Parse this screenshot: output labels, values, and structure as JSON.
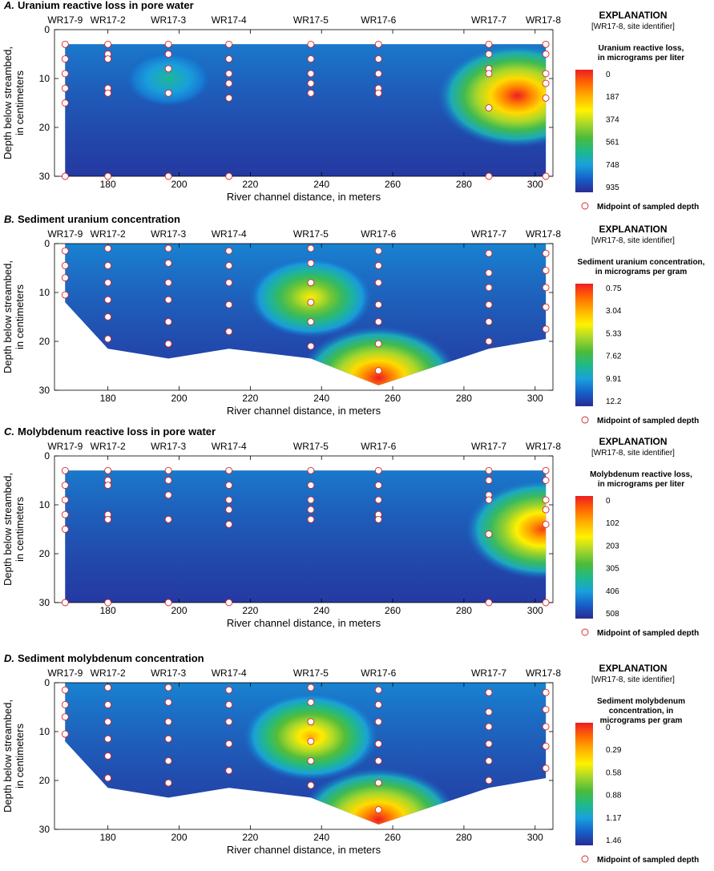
{
  "figure": {
    "panels": [
      {
        "id": "A",
        "title_letter": "A.",
        "title_text": "Uranium reactive loss in pore water",
        "xlabel": "River channel distance, in meters",
        "ylabel_line1": "Depth below streambed,",
        "ylabel_line2": "in centimeters",
        "explanation_title": "EXPLANATION",
        "explanation_subtitle": "[WR17-8, site identifier]",
        "scale_title_lines": [
          "Uranium reactive loss,",
          "in micrograms per liter"
        ],
        "colorbar_labels": [
          "0",
          "187",
          "374",
          "561",
          "748",
          "935"
        ],
        "midpoint_label": "Midpoint of sampled depth"
      },
      {
        "id": "B",
        "title_letter": "B.",
        "title_text": "Sediment uranium concentration",
        "xlabel": "River channel distance, in meters",
        "ylabel_line1": "Depth below streambed,",
        "ylabel_line2": "in centimeters",
        "explanation_title": "EXPLANATION",
        "explanation_subtitle": "[WR17-8, site identifier]",
        "scale_title_lines": [
          "Sediment uranium concentration,",
          "in micrograms per gram"
        ],
        "colorbar_labels": [
          "0.75",
          "3.04",
          "5.33",
          "7.62",
          "9.91",
          "12.2"
        ],
        "midpoint_label": "Midpoint of sampled depth"
      },
      {
        "id": "C",
        "title_letter": "C.",
        "title_text": "Molybdenum reactive loss in pore water",
        "xlabel": "River channel distance, in meters",
        "ylabel_line1": "Depth below streambed,",
        "ylabel_line2": "in centimeters",
        "explanation_title": "EXPLANATION",
        "explanation_subtitle": "[WR17-8, site identifier]",
        "scale_title_lines": [
          "Molybdenum reactive loss,",
          "in micrograms per liter"
        ],
        "colorbar_labels": [
          "0",
          "102",
          "203",
          "305",
          "406",
          "508"
        ],
        "midpoint_label": "Midpoint of sampled depth"
      },
      {
        "id": "D",
        "title_letter": "D.",
        "title_text": "Sediment molybdenum concentration",
        "xlabel": "River channel distance, in meters",
        "ylabel_line1": "Depth below streambed,",
        "ylabel_line2": "in centimeters",
        "explanation_title": "EXPLANATION",
        "explanation_subtitle": "[WR17-8, site identifier]",
        "scale_title_lines": [
          "Sediment molybdenum",
          "concentration, in",
          "micrograms per gram"
        ],
        "colorbar_labels": [
          "0",
          "0.29",
          "0.58",
          "0.88",
          "1.17",
          "1.46"
        ],
        "midpoint_label": "Midpoint of sampled depth"
      }
    ],
    "colors": {
      "scale": [
        "#2a2a94",
        "#1560c8",
        "#1aa0dc",
        "#1fb98a",
        "#4cbb3a",
        "#a6d62d",
        "#fff200",
        "#ffb300",
        "#ff6a00",
        "#ee1c24"
      ],
      "marker_stroke": "#d7262b",
      "marker_fill": "#ffffff"
    }
  },
  "chart_data": [
    {
      "type": "heatmap",
      "title": "A. Uranium reactive loss in pore water",
      "xlabel": "River channel distance, in meters",
      "ylabel": "Depth below streambed, in centimeters",
      "xlim": [
        165,
        305
      ],
      "ylim": [
        30,
        0
      ],
      "x_ticks": [
        180,
        200,
        220,
        240,
        260,
        280,
        300
      ],
      "y_ticks": [
        0,
        10,
        20,
        30
      ],
      "sites": [
        {
          "name": "WR17-9",
          "x": 168
        },
        {
          "name": "WR17-2",
          "x": 180
        },
        {
          "name": "WR17-3",
          "x": 197
        },
        {
          "name": "WR17-4",
          "x": 214
        },
        {
          "name": "WR17-5",
          "x": 237
        },
        {
          "name": "WR17-6",
          "x": 256
        },
        {
          "name": "WR17-7",
          "x": 287
        },
        {
          "name": "WR17-8",
          "x": 303
        }
      ],
      "domain_depth_top": [
        [
          168,
          3
        ],
        [
          303,
          3
        ]
      ],
      "domain_depth_bottom": [
        [
          168,
          30
        ],
        [
          303,
          30
        ]
      ],
      "samples": [
        [
          168,
          [
            3,
            6,
            9,
            12,
            15,
            30
          ]
        ],
        [
          180,
          [
            3,
            5,
            6,
            12,
            13,
            30
          ]
        ],
        [
          197,
          [
            3,
            5,
            8,
            13,
            30
          ]
        ],
        [
          214,
          [
            3,
            6,
            9,
            11,
            14,
            30
          ]
        ],
        [
          237,
          [
            3,
            6,
            9,
            11,
            13
          ]
        ],
        [
          256,
          [
            3,
            6,
            9,
            12,
            13
          ]
        ],
        [
          287,
          [
            3,
            5,
            8,
            9,
            16,
            30
          ]
        ],
        [
          303,
          [
            3,
            5,
            9,
            11,
            14,
            30
          ]
        ]
      ],
      "color_scale_label": "Uranium reactive loss, in micrograms per liter",
      "color_scale": [
        0,
        187,
        374,
        561,
        748,
        935
      ],
      "hotspots": [
        {
          "x": 295,
          "depth": 13.5,
          "value": 935
        },
        {
          "x": 197,
          "depth": 10,
          "value": 300
        }
      ]
    },
    {
      "type": "heatmap",
      "title": "B. Sediment uranium concentration",
      "xlabel": "River channel distance, in meters",
      "ylabel": "Depth below streambed, in centimeters",
      "xlim": [
        165,
        305
      ],
      "ylim": [
        30,
        0
      ],
      "x_ticks": [
        180,
        200,
        220,
        240,
        260,
        280,
        300
      ],
      "y_ticks": [
        0,
        10,
        20,
        30
      ],
      "sites": [
        {
          "name": "WR17-9",
          "x": 168
        },
        {
          "name": "WR17-2",
          "x": 180
        },
        {
          "name": "WR17-3",
          "x": 197
        },
        {
          "name": "WR17-4",
          "x": 214
        },
        {
          "name": "WR17-5",
          "x": 237
        },
        {
          "name": "WR17-6",
          "x": 256
        },
        {
          "name": "WR17-7",
          "x": 287
        },
        {
          "name": "WR17-8",
          "x": 303
        }
      ],
      "domain_depth_top": [
        [
          168,
          0
        ],
        [
          303,
          0
        ]
      ],
      "domain_depth_bottom": [
        [
          168,
          12
        ],
        [
          180,
          21.5
        ],
        [
          197,
          23.5
        ],
        [
          214,
          21.5
        ],
        [
          237,
          23.5
        ],
        [
          256,
          29
        ],
        [
          287,
          21.5
        ],
        [
          303,
          19.5
        ]
      ],
      "samples": [
        [
          168,
          [
            1.5,
            4.5,
            7,
            10.5
          ]
        ],
        [
          180,
          [
            1,
            4.5,
            8,
            11.5,
            15,
            19.5
          ]
        ],
        [
          197,
          [
            1,
            4,
            8,
            11.5,
            16,
            20.5
          ]
        ],
        [
          214,
          [
            1.5,
            4.5,
            8,
            12.5,
            18
          ]
        ],
        [
          237,
          [
            1,
            4,
            8,
            12,
            16,
            21
          ]
        ],
        [
          256,
          [
            1.5,
            4.5,
            8,
            12.5,
            16,
            20.5,
            26
          ]
        ],
        [
          287,
          [
            2,
            6,
            9,
            12.5,
            16,
            20
          ]
        ],
        [
          303,
          [
            2,
            5.5,
            9,
            13,
            17.5
          ]
        ]
      ],
      "color_scale_label": "Sediment uranium concentration, in micrograms per gram",
      "color_scale": [
        0.75,
        3.04,
        5.33,
        7.62,
        9.91,
        12.2
      ],
      "hotspots": [
        {
          "x": 256,
          "depth": 27.5,
          "value": 12.2
        },
        {
          "x": 237,
          "depth": 11,
          "value": 8.5
        }
      ]
    },
    {
      "type": "heatmap",
      "title": "C. Molybdenum reactive loss in pore water",
      "xlabel": "River channel distance, in meters",
      "ylabel": "Depth below streambed, in centimeters",
      "xlim": [
        165,
        305
      ],
      "ylim": [
        30,
        0
      ],
      "x_ticks": [
        180,
        200,
        220,
        240,
        260,
        280,
        300
      ],
      "y_ticks": [
        0,
        10,
        20,
        30
      ],
      "sites": [
        {
          "name": "WR17-9",
          "x": 168
        },
        {
          "name": "WR17-2",
          "x": 180
        },
        {
          "name": "WR17-3",
          "x": 197
        },
        {
          "name": "WR17-4",
          "x": 214
        },
        {
          "name": "WR17-5",
          "x": 237
        },
        {
          "name": "WR17-6",
          "x": 256
        },
        {
          "name": "WR17-7",
          "x": 287
        },
        {
          "name": "WR17-8",
          "x": 303
        }
      ],
      "domain_depth_top": [
        [
          168,
          3
        ],
        [
          303,
          3
        ]
      ],
      "domain_depth_bottom": [
        [
          168,
          30
        ],
        [
          303,
          30
        ]
      ],
      "samples": [
        [
          168,
          [
            3,
            6,
            9,
            12,
            15,
            30
          ]
        ],
        [
          180,
          [
            3,
            5,
            6,
            12,
            13,
            30
          ]
        ],
        [
          197,
          [
            3,
            5,
            8,
            13,
            30
          ]
        ],
        [
          214,
          [
            3,
            6,
            9,
            11,
            14,
            30
          ]
        ],
        [
          237,
          [
            3,
            6,
            9,
            11,
            13
          ]
        ],
        [
          256,
          [
            3,
            6,
            9,
            12,
            13
          ]
        ],
        [
          287,
          [
            3,
            5,
            8,
            9,
            16,
            30
          ]
        ],
        [
          303,
          [
            3,
            5,
            9,
            11,
            14,
            30
          ]
        ]
      ],
      "color_scale_label": "Molybdenum reactive loss, in micrograms per liter",
      "color_scale": [
        0,
        102,
        203,
        305,
        406,
        508
      ],
      "hotspots": [
        {
          "x": 302,
          "depth": 15,
          "value": 480
        }
      ]
    },
    {
      "type": "heatmap",
      "title": "D. Sediment molybdenum concentration",
      "xlabel": "River channel distance, in meters",
      "ylabel": "Depth below streambed, in centimeters",
      "xlim": [
        165,
        305
      ],
      "ylim": [
        30,
        0
      ],
      "x_ticks": [
        180,
        200,
        220,
        240,
        260,
        280,
        300
      ],
      "y_ticks": [
        0,
        10,
        20,
        30
      ],
      "sites": [
        {
          "name": "WR17-9",
          "x": 168
        },
        {
          "name": "WR17-2",
          "x": 180
        },
        {
          "name": "WR17-3",
          "x": 197
        },
        {
          "name": "WR17-4",
          "x": 214
        },
        {
          "name": "WR17-5",
          "x": 237
        },
        {
          "name": "WR17-6",
          "x": 256
        },
        {
          "name": "WR17-7",
          "x": 287
        },
        {
          "name": "WR17-8",
          "x": 303
        }
      ],
      "domain_depth_top": [
        [
          168,
          0
        ],
        [
          303,
          0
        ]
      ],
      "domain_depth_bottom": [
        [
          168,
          12
        ],
        [
          180,
          21.5
        ],
        [
          197,
          23.5
        ],
        [
          214,
          21.5
        ],
        [
          237,
          23.5
        ],
        [
          256,
          29
        ],
        [
          287,
          21.5
        ],
        [
          303,
          19.5
        ]
      ],
      "samples": [
        [
          168,
          [
            1.5,
            4.5,
            7,
            10.5
          ]
        ],
        [
          180,
          [
            1,
            4.5,
            8,
            11.5,
            15,
            19.5
          ]
        ],
        [
          197,
          [
            1,
            4,
            8,
            11.5,
            16,
            20.5
          ]
        ],
        [
          214,
          [
            1.5,
            4.5,
            8,
            12.5,
            18
          ]
        ],
        [
          237,
          [
            1,
            4,
            8,
            12,
            16,
            21
          ]
        ],
        [
          256,
          [
            1.5,
            4.5,
            8,
            12.5,
            16,
            20.5,
            26
          ]
        ],
        [
          287,
          [
            2,
            6,
            9,
            12.5,
            16,
            20
          ]
        ],
        [
          303,
          [
            2,
            5.5,
            9,
            13,
            17.5
          ]
        ]
      ],
      "color_scale_label": "Sediment molybdenum concentration, in micrograms per gram",
      "color_scale": [
        0,
        0.29,
        0.58,
        0.88,
        1.17,
        1.46
      ],
      "hotspots": [
        {
          "x": 256,
          "depth": 28,
          "value": 1.46
        },
        {
          "x": 237,
          "depth": 11,
          "value": 1.15
        }
      ]
    }
  ]
}
